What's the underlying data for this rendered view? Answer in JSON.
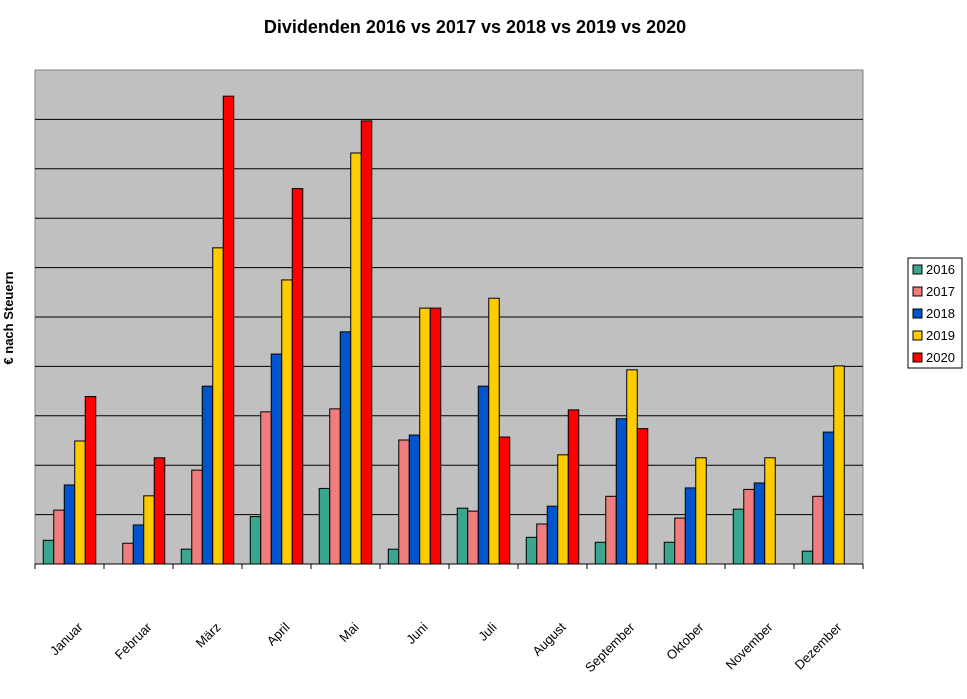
{
  "chart_data": {
    "type": "bar",
    "title": "Dividenden 2016 vs 2017 vs 2018 vs 2019 vs 2020",
    "xlabel": "",
    "ylabel": "€ nach Steuern",
    "categories": [
      "Januar",
      "Februar",
      "März",
      "April",
      "Mai",
      "Juni",
      "Juli",
      "August",
      "September",
      "Oktober",
      "November",
      "Dezember"
    ],
    "ylim": [
      0,
      100
    ],
    "grid": true,
    "legend_position": "right",
    "series": [
      {
        "name": "2016",
        "color": "#3aa68f",
        "values": [
          4.8,
          0,
          3.0,
          9.6,
          15.3,
          3.0,
          11.3,
          5.4,
          4.4,
          4.4,
          11.1,
          2.6
        ]
      },
      {
        "name": "2017",
        "color": "#f07d7d",
        "values": [
          10.9,
          4.2,
          19.0,
          30.8,
          31.4,
          25.1,
          10.7,
          8.1,
          13.7,
          9.3,
          15.1,
          13.7
        ]
      },
      {
        "name": "2018",
        "color": "#0055cc",
        "values": [
          16.0,
          7.9,
          36.0,
          42.5,
          47.0,
          26.1,
          36.0,
          11.7,
          29.4,
          15.4,
          16.4,
          26.7
        ]
      },
      {
        "name": "2019",
        "color": "#ffcc00",
        "values": [
          24.9,
          13.8,
          64.0,
          57.5,
          83.2,
          51.8,
          53.8,
          22.1,
          39.3,
          21.5,
          21.5,
          40.1
        ]
      },
      {
        "name": "2020",
        "color": "#ff0000",
        "values": [
          33.9,
          21.5,
          94.7,
          76.0,
          89.7,
          51.8,
          25.7,
          31.2,
          27.4,
          null,
          null,
          null
        ]
      }
    ]
  }
}
